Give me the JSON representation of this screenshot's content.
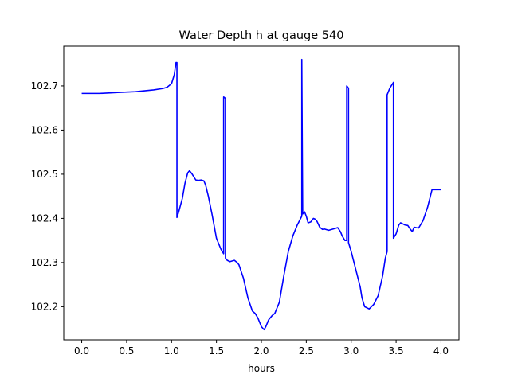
{
  "chart_data": {
    "type": "line",
    "title": "Water Depth h at gauge 540",
    "xlabel": "hours",
    "ylabel": "",
    "xlim": [
      -0.2,
      4.2
    ],
    "ylim": [
      102.125,
      102.79
    ],
    "xticks": [
      0.0,
      0.5,
      1.0,
      1.5,
      2.0,
      2.5,
      3.0,
      3.5,
      4.0
    ],
    "xtick_labels": [
      "0.0",
      "0.5",
      "1.0",
      "1.5",
      "2.0",
      "2.5",
      "3.0",
      "3.5",
      "4.0"
    ],
    "yticks": [
      102.2,
      102.3,
      102.4,
      102.5,
      102.6,
      102.7
    ],
    "ytick_labels": [
      "102.2",
      "102.3",
      "102.4",
      "102.5",
      "102.6",
      "102.7"
    ],
    "grid": false,
    "series": [
      {
        "color": "#0000ff",
        "x": [
          0.0,
          0.1,
          0.2,
          0.3,
          0.4,
          0.5,
          0.6,
          0.7,
          0.8,
          0.9,
          0.95,
          1.0,
          1.03,
          1.05,
          1.06,
          1.06,
          1.08,
          1.12,
          1.15,
          1.18,
          1.2,
          1.23,
          1.27,
          1.3,
          1.33,
          1.36,
          1.38,
          1.41,
          1.45,
          1.5,
          1.55,
          1.58,
          1.58,
          1.6,
          1.6,
          1.62,
          1.65,
          1.7,
          1.73,
          1.75,
          1.8,
          1.85,
          1.9,
          1.93,
          1.96,
          2.0,
          2.03,
          2.05,
          2.08,
          2.12,
          2.15,
          2.2,
          2.25,
          2.3,
          2.35,
          2.4,
          2.45,
          2.45,
          2.46,
          2.48,
          2.5,
          2.52,
          2.55,
          2.58,
          2.6,
          2.62,
          2.65,
          2.68,
          2.7,
          2.75,
          2.8,
          2.85,
          2.88,
          2.9,
          2.93,
          2.95,
          2.95,
          2.97,
          2.97,
          3.0,
          3.05,
          3.1,
          3.12,
          3.15,
          3.2,
          3.25,
          3.3,
          3.35,
          3.38,
          3.4,
          3.4,
          3.43,
          3.47,
          3.47,
          3.5,
          3.53,
          3.55,
          3.6,
          3.63,
          3.66,
          3.68,
          3.7,
          3.75,
          3.8,
          3.85,
          3.9,
          3.95,
          4.0
        ],
        "y": [
          102.683,
          102.683,
          102.683,
          102.684,
          102.685,
          102.686,
          102.687,
          102.689,
          102.691,
          102.694,
          102.697,
          102.705,
          102.725,
          102.753,
          102.753,
          102.402,
          102.415,
          102.445,
          102.48,
          102.503,
          102.508,
          102.5,
          102.487,
          102.486,
          102.487,
          102.485,
          102.475,
          102.45,
          102.41,
          102.355,
          102.33,
          102.32,
          102.675,
          102.672,
          102.31,
          102.305,
          102.302,
          102.305,
          102.3,
          102.295,
          102.265,
          102.22,
          102.19,
          102.185,
          102.175,
          102.155,
          102.148,
          102.155,
          102.17,
          102.18,
          102.185,
          102.21,
          102.27,
          102.325,
          102.36,
          102.385,
          102.405,
          102.76,
          102.41,
          102.415,
          102.405,
          102.39,
          102.392,
          102.4,
          102.398,
          102.393,
          102.38,
          102.375,
          102.376,
          102.373,
          102.376,
          102.379,
          102.37,
          102.36,
          102.35,
          102.35,
          102.7,
          102.695,
          102.345,
          102.325,
          102.285,
          102.245,
          102.22,
          102.2,
          102.195,
          102.205,
          102.225,
          102.27,
          102.31,
          102.325,
          102.68,
          102.695,
          102.708,
          102.355,
          102.365,
          102.385,
          102.39,
          102.385,
          102.384,
          102.375,
          102.37,
          102.38,
          102.378,
          102.395,
          102.425,
          102.465,
          102.465,
          102.465
        ]
      }
    ]
  }
}
